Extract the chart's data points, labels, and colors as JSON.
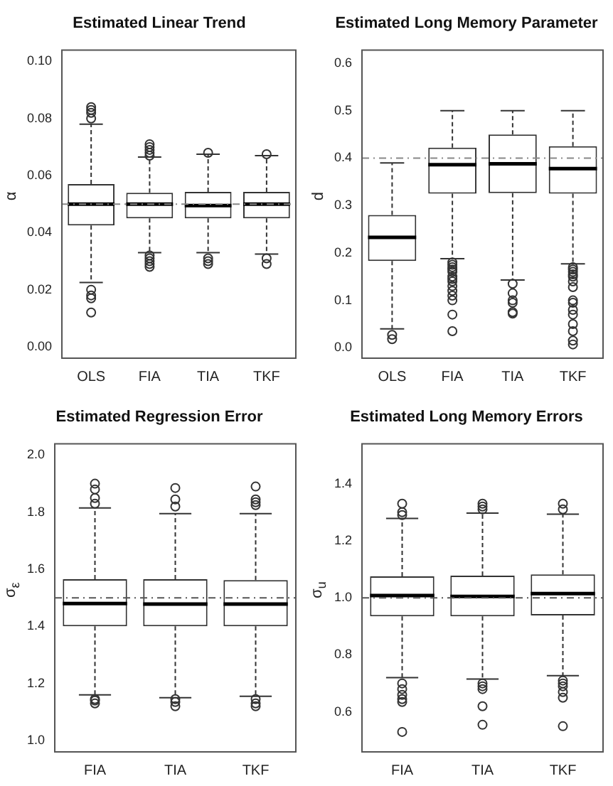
{
  "chart_data": [
    {
      "type": "box",
      "title": "Estimated Linear Trend",
      "ylabel": "α",
      "categories": [
        "OLS",
        "FIA",
        "TIA",
        "TKF"
      ],
      "ylim": [
        -0.004,
        0.104
      ],
      "yticks": [
        {
          "value": 0,
          "label": "0.00"
        },
        0.02,
        0.04,
        0.06,
        0.08,
        {
          "value": 0.1,
          "label": "0.10"
        }
      ],
      "marker": "circle",
      "boxes": [
        {
          "low": 0.0225,
          "q1": 0.0425,
          "median": 0.05,
          "q3": 0.057,
          "high": 0.078,
          "outliers": [
            0.084,
            0.083,
            0.082,
            0.08,
            0.02,
            0.018,
            0.017,
            0.012
          ]
        },
        {
          "low": 0.033,
          "q1": 0.045,
          "median": 0.05,
          "q3": 0.054,
          "high": 0.0665,
          "outliers": [
            0.071,
            0.07,
            0.069,
            0.068,
            0.067,
            0.032,
            0.031,
            0.03,
            0.029,
            0.028
          ]
        },
        {
          "low": 0.033,
          "q1": 0.045,
          "median": 0.0495,
          "q3": 0.0543,
          "high": 0.0675,
          "outliers": [
            0.068,
            0.031,
            0.03,
            0.029
          ]
        },
        {
          "low": 0.0325,
          "q1": 0.045,
          "median": 0.05,
          "q3": 0.0543,
          "high": 0.067,
          "outliers": [
            0.0675,
            0.031,
            0.029
          ]
        }
      ],
      "ref_lines": [
        {
          "axis": "y",
          "value": 0.05,
          "color": "#888888",
          "line_style": "dashed"
        }
      ]
    },
    {
      "type": "box",
      "title": "Estimated Long Memory Parameter",
      "ylabel": "d",
      "categories": [
        "OLS",
        "FIA",
        "TIA",
        "TKF"
      ],
      "ylim": [
        -0.022,
        0.628
      ],
      "yticks": [
        {
          "value": 0,
          "label": "0.0"
        },
        0.1,
        0.2,
        0.3,
        0.4,
        0.5,
        0.6
      ],
      "marker": "circle",
      "boxes": [
        {
          "low": 0.04,
          "q1": 0.183,
          "median": 0.233,
          "q3": 0.28,
          "high": 0.39,
          "outliers": [
            0.027,
            0.018
          ]
        },
        {
          "low": 0.188,
          "q1": 0.325,
          "median": 0.386,
          "q3": 0.422,
          "high": 0.5,
          "outliers": [
            0.18,
            0.175,
            0.17,
            0.165,
            0.16,
            0.15,
            0.145,
            0.14,
            0.13,
            0.12,
            0.11,
            0.1,
            0.07,
            0.035
          ]
        },
        {
          "low": 0.143,
          "q1": 0.326,
          "median": 0.388,
          "q3": 0.45,
          "high": 0.5,
          "outliers": [
            0.135,
            0.115,
            0.1,
            0.095,
            0.075,
            0.072
          ]
        },
        {
          "low": 0.177,
          "q1": 0.325,
          "median": 0.378,
          "q3": 0.425,
          "high": 0.5,
          "outliers": [
            0.17,
            0.165,
            0.16,
            0.155,
            0.15,
            0.14,
            0.128,
            0.1,
            0.095,
            0.08,
            0.07,
            0.05,
            0.035,
            0.015,
            0.007
          ]
        }
      ],
      "ref_lines": [
        {
          "axis": "y",
          "value": 0.4,
          "color": "#888888",
          "line_style": "dashed"
        }
      ]
    },
    {
      "type": "box",
      "title": "Estimated Regression Error",
      "ylabel": "σ$_{ε}$",
      "categories": [
        "FIA",
        "TIA",
        "TKF"
      ],
      "ylim": [
        0.96,
        2.04
      ],
      "yticks": [
        {
          "value": 1,
          "label": "1.0"
        },
        1.2,
        1.4,
        1.6,
        1.8,
        {
          "value": 2,
          "label": "2.0"
        }
      ],
      "marker": "circle",
      "boxes": [
        {
          "low": 1.16,
          "q1": 1.4,
          "median": 1.48,
          "q3": 1.565,
          "high": 1.815,
          "outliers": [
            1.9,
            1.88,
            1.85,
            1.83,
            1.145,
            1.14,
            1.13
          ]
        },
        {
          "low": 1.15,
          "q1": 1.4,
          "median": 1.478,
          "q3": 1.565,
          "high": 1.795,
          "outliers": [
            1.885,
            1.845,
            1.82,
            1.145,
            1.135,
            1.12
          ]
        },
        {
          "low": 1.155,
          "q1": 1.4,
          "median": 1.478,
          "q3": 1.562,
          "high": 1.795,
          "outliers": [
            1.89,
            1.845,
            1.835,
            1.825,
            1.145,
            1.13,
            1.12
          ]
        }
      ],
      "ref_lines": [
        {
          "axis": "y",
          "value": 1.5,
          "color": "#555555",
          "line_style": "dashed"
        }
      ]
    },
    {
      "type": "box",
      "title": "Estimated Long Memory Errors",
      "ylabel": "σ$_{u}$",
      "categories": [
        "FIA",
        "TIA",
        "TKF"
      ],
      "ylim": [
        0.46,
        1.54
      ],
      "yticks": [
        0.6,
        0.8,
        {
          "value": 1,
          "label": "1.0"
        },
        1.2,
        1.4
      ],
      "marker": "circle",
      "boxes": [
        {
          "low": 0.72,
          "q1": 0.935,
          "median": 1.008,
          "q3": 1.075,
          "high": 1.278,
          "outliers": [
            1.33,
            1.3,
            1.29,
            0.7,
            0.68,
            0.66,
            0.645,
            0.635,
            0.53
          ]
        },
        {
          "low": 0.715,
          "q1": 0.935,
          "median": 1.005,
          "q3": 1.078,
          "high": 1.297,
          "outliers": [
            1.33,
            1.32,
            1.31,
            0.7,
            0.69,
            0.68,
            0.62,
            0.555
          ]
        },
        {
          "low": 0.727,
          "q1": 0.938,
          "median": 1.015,
          "q3": 1.082,
          "high": 1.293,
          "outliers": [
            1.33,
            1.31,
            0.71,
            0.7,
            0.69,
            0.67,
            0.65,
            0.55
          ]
        }
      ],
      "ref_lines": [
        {
          "axis": "y",
          "value": 1,
          "color": "#555555",
          "line_style": "dashed"
        }
      ]
    }
  ]
}
